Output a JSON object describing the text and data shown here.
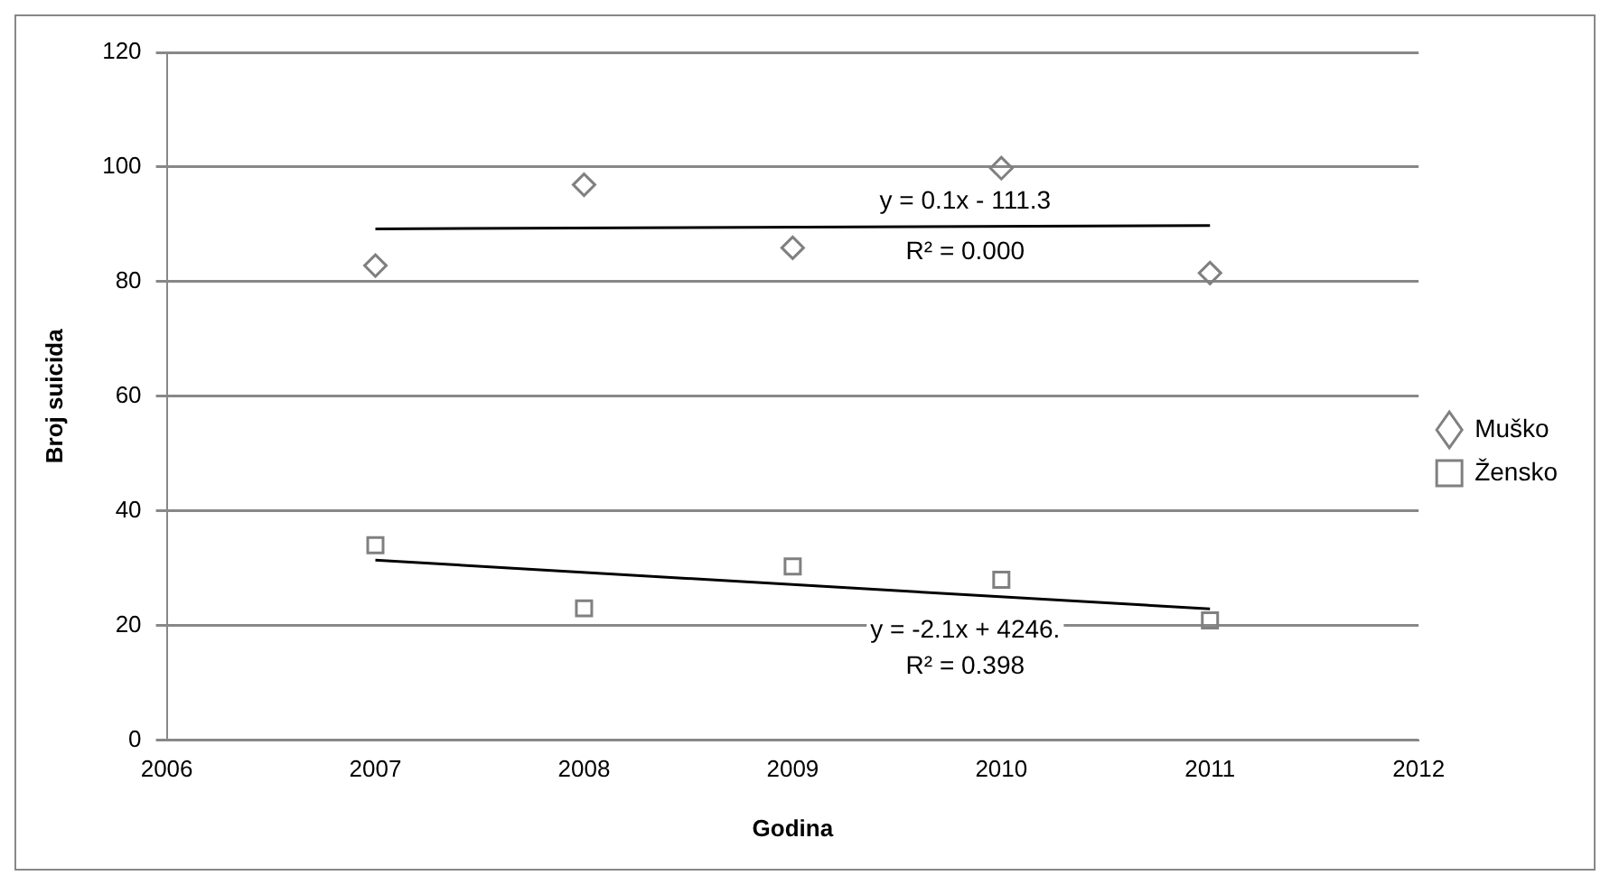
{
  "chart_data": {
    "type": "scatter",
    "xlabel": "Godina",
    "ylabel": "Broj suicida",
    "x": [
      2007,
      2008,
      2009,
      2010,
      2011
    ],
    "series": [
      {
        "name": "Muško",
        "color": "#808080",
        "marker": "diamond",
        "values": [
          82.8,
          96.9,
          85.9,
          99.8,
          81.5
        ]
      },
      {
        "name": "Žensko",
        "color": "#808080",
        "marker": "square",
        "values": [
          34,
          23,
          30.3,
          28,
          20.9
        ]
      },
      {
        "type": "line",
        "color": "#000000",
        "marker": "none",
        "values": [
          89.2,
          null,
          null,
          null,
          89.8
        ]
      },
      {
        "type": "line",
        "color": "#000000",
        "marker": "none",
        "values": [
          31.4,
          null,
          null,
          null,
          22.9
        ]
      }
    ],
    "annotations": [
      "y = 0.1x - 111.3",
      "R² = 0.000",
      "y = -2.1x + 4246.",
      "R² = 0.398"
    ],
    "xlim": [
      2006,
      2012
    ],
    "xticks": [
      2006,
      2007,
      2008,
      2009,
      2010,
      2011,
      2012
    ],
    "ylim": [
      0,
      120
    ],
    "yticks": [
      0,
      20,
      40,
      60,
      80,
      100,
      120
    ],
    "grid": "y",
    "legend": "right"
  }
}
